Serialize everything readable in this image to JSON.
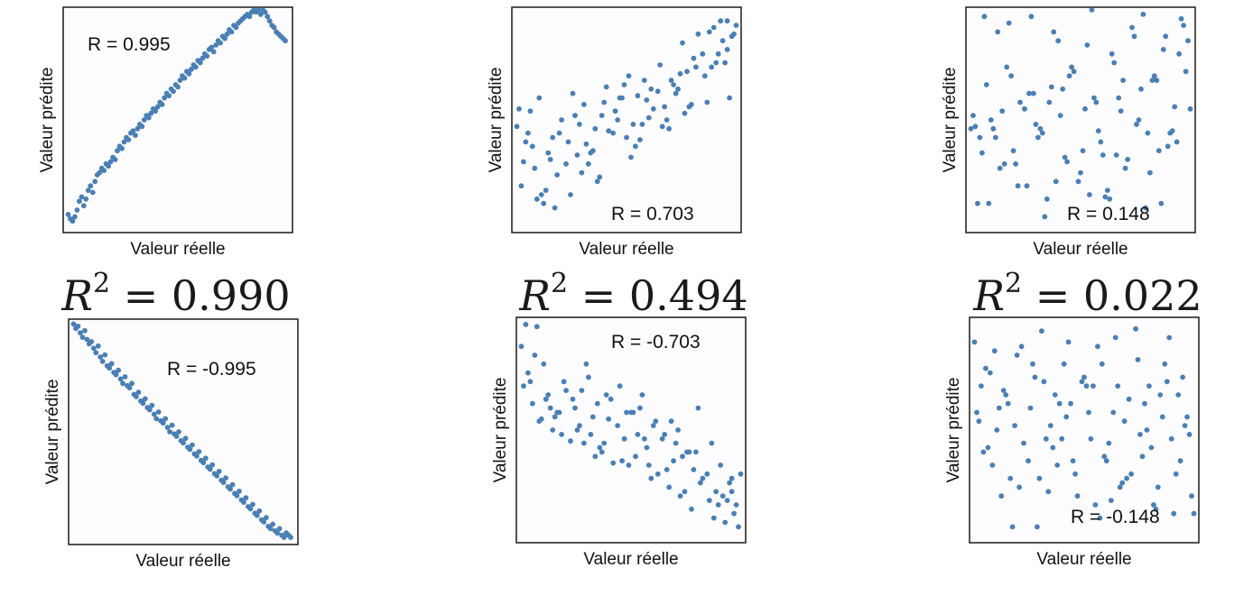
{
  "chart_data": [
    {
      "type": "scatter",
      "annotation": "R = 0.995",
      "xlabel": "Valeur réelle",
      "ylabel": "Valeur prédite",
      "point_color": "#4a7fb5",
      "x": [
        0.01,
        0.02,
        0.03,
        0.04,
        0.05,
        0.06,
        0.07,
        0.08,
        0.09,
        0.1,
        0.11,
        0.12,
        0.13,
        0.14,
        0.15,
        0.16,
        0.17,
        0.18,
        0.19,
        0.2,
        0.21,
        0.22,
        0.23,
        0.24,
        0.25,
        0.26,
        0.27,
        0.28,
        0.29,
        0.3,
        0.31,
        0.32,
        0.33,
        0.34,
        0.35,
        0.36,
        0.37,
        0.38,
        0.39,
        0.4,
        0.41,
        0.42,
        0.43,
        0.44,
        0.45,
        0.46,
        0.47,
        0.48,
        0.49,
        0.5,
        0.51,
        0.52,
        0.53,
        0.54,
        0.55,
        0.56,
        0.57,
        0.58,
        0.59,
        0.6,
        0.61,
        0.62,
        0.63,
        0.64,
        0.65,
        0.66,
        0.67,
        0.68,
        0.69,
        0.7,
        0.71,
        0.72,
        0.73,
        0.74,
        0.75,
        0.76,
        0.77,
        0.78,
        0.79,
        0.8,
        0.81,
        0.82,
        0.83,
        0.84,
        0.85,
        0.86,
        0.87,
        0.88,
        0.89,
        0.9,
        0.91,
        0.92,
        0.93,
        0.94,
        0.95,
        0.96,
        0.97,
        0.98
      ],
      "y": [
        0.07,
        0.05,
        0.04,
        0.06,
        0.09,
        0.13,
        0.15,
        0.11,
        0.14,
        0.18,
        0.2,
        0.17,
        0.22,
        0.25,
        0.26,
        0.28,
        0.27,
        0.3,
        0.29,
        0.31,
        0.33,
        0.32,
        0.36,
        0.38,
        0.37,
        0.4,
        0.42,
        0.41,
        0.44,
        0.45,
        0.43,
        0.46,
        0.48,
        0.47,
        0.5,
        0.52,
        0.51,
        0.53,
        0.55,
        0.54,
        0.56,
        0.58,
        0.57,
        0.6,
        0.62,
        0.61,
        0.64,
        0.63,
        0.66,
        0.65,
        0.68,
        0.7,
        0.69,
        0.72,
        0.71,
        0.73,
        0.75,
        0.74,
        0.77,
        0.76,
        0.78,
        0.8,
        0.79,
        0.82,
        0.83,
        0.81,
        0.84,
        0.86,
        0.85,
        0.88,
        0.87,
        0.89,
        0.91,
        0.9,
        0.93,
        0.92,
        0.94,
        0.95,
        0.96,
        0.97,
        0.98,
        0.97,
        0.99,
        1.0,
        0.99,
        1.0,
        0.98,
        1.0,
        0.99,
        0.97,
        0.95,
        0.93,
        0.92,
        0.9,
        0.89,
        0.88,
        0.87,
        0.86
      ]
    },
    {
      "type": "scatter",
      "annotation": "R = 0.703",
      "xlabel": "Valeur réelle",
      "ylabel": "Valeur prédite",
      "point_color": "#4a7fb5",
      "x": [
        0.01,
        0.03,
        0.05,
        0.08,
        0.1,
        0.13,
        0.15,
        0.18,
        0.2,
        0.23,
        0.25,
        0.27,
        0.3,
        0.32,
        0.35,
        0.37,
        0.4,
        0.42,
        0.45,
        0.47,
        0.5,
        0.52,
        0.55,
        0.57,
        0.6,
        0.62,
        0.65,
        0.67,
        0.7,
        0.72,
        0.75,
        0.77,
        0.8,
        0.82,
        0.85,
        0.87,
        0.9,
        0.92,
        0.95,
        0.97,
        0.99,
        0.02,
        0.06,
        0.11,
        0.16,
        0.21,
        0.26,
        0.31,
        0.36,
        0.41,
        0.46,
        0.51,
        0.56,
        0.61,
        0.66,
        0.71,
        0.76,
        0.81,
        0.86,
        0.91,
        0.96,
        0.04,
        0.09,
        0.14,
        0.19,
        0.24,
        0.29,
        0.34,
        0.39,
        0.44,
        0.49,
        0.54,
        0.59,
        0.64,
        0.69,
        0.74,
        0.79,
        0.84,
        0.89,
        0.94,
        0.98,
        0.07,
        0.17,
        0.28,
        0.38,
        0.48,
        0.58,
        0.68,
        0.78,
        0.88,
        0.95,
        0.12,
        0.33,
        0.53,
        0.73,
        0.93
      ],
      "y": [
        0.47,
        0.2,
        0.4,
        0.38,
        0.14,
        0.12,
        0.35,
        0.1,
        0.44,
        0.3,
        0.16,
        0.52,
        0.26,
        0.39,
        0.36,
        0.22,
        0.58,
        0.45,
        0.54,
        0.6,
        0.42,
        0.33,
        0.61,
        0.48,
        0.51,
        0.55,
        0.75,
        0.56,
        0.68,
        0.62,
        0.85,
        0.72,
        0.78,
        0.89,
        0.7,
        0.9,
        0.76,
        0.95,
        0.82,
        0.88,
        0.93,
        0.55,
        0.44,
        0.6,
        0.32,
        0.5,
        0.62,
        0.57,
        0.46,
        0.65,
        0.5,
        0.7,
        0.41,
        0.64,
        0.47,
        0.66,
        0.53,
        0.74,
        0.58,
        0.8,
        0.6,
        0.31,
        0.28,
        0.18,
        0.25,
        0.4,
        0.48,
        0.35,
        0.52,
        0.44,
        0.66,
        0.38,
        0.59,
        0.63,
        0.46,
        0.71,
        0.57,
        0.8,
        0.92,
        0.76,
        0.89,
        0.54,
        0.42,
        0.34,
        0.24,
        0.6,
        0.68,
        0.5,
        0.56,
        0.74,
        0.95,
        0.16,
        0.3,
        0.48,
        0.64,
        0.86
      ]
    },
    {
      "type": "scatter",
      "annotation": "R = 0.148",
      "xlabel": "Valeur réelle",
      "ylabel": "Valeur prédite",
      "point_color": "#4a7fb5",
      "x": [
        0.01,
        0.04,
        0.07,
        0.1,
        0.13,
        0.16,
        0.19,
        0.22,
        0.25,
        0.28,
        0.31,
        0.34,
        0.37,
        0.4,
        0.43,
        0.46,
        0.49,
        0.52,
        0.55,
        0.58,
        0.61,
        0.64,
        0.67,
        0.7,
        0.73,
        0.76,
        0.79,
        0.82,
        0.85,
        0.88,
        0.91,
        0.94,
        0.97,
        0.99,
        0.02,
        0.05,
        0.08,
        0.11,
        0.14,
        0.17,
        0.2,
        0.23,
        0.26,
        0.29,
        0.32,
        0.35,
        0.38,
        0.41,
        0.44,
        0.47,
        0.5,
        0.53,
        0.56,
        0.59,
        0.62,
        0.65,
        0.68,
        0.71,
        0.74,
        0.77,
        0.8,
        0.83,
        0.86,
        0.89,
        0.92,
        0.95,
        0.98,
        0.03,
        0.09,
        0.15,
        0.21,
        0.27,
        0.33,
        0.39,
        0.45,
        0.51,
        0.57,
        0.63,
        0.69,
        0.75,
        0.81,
        0.87,
        0.93,
        0.96,
        0.06,
        0.18,
        0.3,
        0.42,
        0.54,
        0.66,
        0.78,
        0.9,
        0.12,
        0.36,
        0.6,
        0.84
      ],
      "y": [
        0.46,
        0.12,
        0.97,
        0.5,
        0.9,
        0.3,
        0.7,
        0.2,
        0.55,
        0.97,
        0.42,
        0.06,
        0.65,
        0.86,
        0.33,
        0.74,
        0.22,
        0.55,
        1.0,
        0.45,
        0.15,
        0.8,
        0.6,
        0.28,
        0.92,
        0.5,
        0.1,
        0.68,
        0.36,
        0.88,
        0.45,
        0.8,
        0.72,
        0.55,
        0.52,
        0.42,
        0.66,
        0.46,
        0.28,
        0.74,
        0.36,
        0.58,
        0.2,
        0.62,
        0.46,
        0.14,
        0.9,
        0.52,
        0.31,
        0.72,
        0.26,
        0.84,
        0.6,
        0.4,
        0.18,
        0.76,
        0.54,
        0.32,
        0.88,
        0.64,
        0.44,
        0.7,
        0.12,
        0.38,
        0.56,
        0.96,
        0.86,
        0.47,
        0.12,
        0.54,
        0.3,
        0.62,
        0.44,
        0.22,
        0.7,
        0.36,
        0.58,
        0.14,
        0.68,
        0.48,
        0.26,
        0.82,
        0.4,
        0.93,
        0.35,
        0.94,
        0.48,
        0.64,
        0.16,
        0.34,
        0.98,
        0.44,
        0.42,
        0.58,
        0.34,
        0.68
      ]
    },
    {
      "type": "scatter",
      "annotation": "R = -0.995",
      "xlabel": "Valeur réelle",
      "ylabel": "Valeur prédite",
      "point_color": "#4a7fb5",
      "x": [
        0.01,
        0.02,
        0.03,
        0.04,
        0.05,
        0.06,
        0.07,
        0.08,
        0.09,
        0.1,
        0.11,
        0.12,
        0.13,
        0.14,
        0.15,
        0.16,
        0.17,
        0.18,
        0.19,
        0.2,
        0.21,
        0.22,
        0.23,
        0.24,
        0.25,
        0.26,
        0.27,
        0.28,
        0.29,
        0.3,
        0.31,
        0.32,
        0.33,
        0.34,
        0.35,
        0.36,
        0.37,
        0.38,
        0.39,
        0.4,
        0.41,
        0.42,
        0.43,
        0.44,
        0.45,
        0.46,
        0.47,
        0.48,
        0.49,
        0.5,
        0.51,
        0.52,
        0.53,
        0.54,
        0.55,
        0.56,
        0.57,
        0.58,
        0.59,
        0.6,
        0.61,
        0.62,
        0.63,
        0.64,
        0.65,
        0.66,
        0.67,
        0.68,
        0.69,
        0.7,
        0.71,
        0.72,
        0.73,
        0.74,
        0.75,
        0.76,
        0.77,
        0.78,
        0.79,
        0.8,
        0.81,
        0.82,
        0.83,
        0.84,
        0.85,
        0.86,
        0.87,
        0.88,
        0.89,
        0.9,
        0.91,
        0.92,
        0.93,
        0.94,
        0.95,
        0.96,
        0.97,
        0.98
      ],
      "y": [
        0.99,
        0.97,
        0.98,
        0.95,
        0.93,
        0.96,
        0.92,
        0.9,
        0.91,
        0.88,
        0.86,
        0.89,
        0.84,
        0.82,
        0.85,
        0.8,
        0.79,
        0.81,
        0.77,
        0.76,
        0.78,
        0.74,
        0.72,
        0.75,
        0.71,
        0.7,
        0.72,
        0.67,
        0.66,
        0.68,
        0.64,
        0.63,
        0.65,
        0.61,
        0.6,
        0.62,
        0.58,
        0.56,
        0.59,
        0.55,
        0.54,
        0.56,
        0.52,
        0.5,
        0.53,
        0.49,
        0.48,
        0.5,
        0.46,
        0.45,
        0.47,
        0.43,
        0.42,
        0.44,
        0.4,
        0.39,
        0.41,
        0.37,
        0.36,
        0.38,
        0.34,
        0.33,
        0.35,
        0.31,
        0.3,
        0.32,
        0.28,
        0.27,
        0.29,
        0.25,
        0.24,
        0.26,
        0.22,
        0.21,
        0.23,
        0.19,
        0.18,
        0.2,
        0.16,
        0.15,
        0.17,
        0.13,
        0.12,
        0.14,
        0.1,
        0.09,
        0.11,
        0.07,
        0.06,
        0.08,
        0.05,
        0.04,
        0.06,
        0.03,
        0.02,
        0.04,
        0.03,
        0.02
      ]
    },
    {
      "type": "scatter",
      "annotation": "R = -0.703",
      "xlabel": "Valeur réelle",
      "ylabel": "Valeur prédite",
      "point_color": "#4a7fb5",
      "x": [
        0.01,
        0.03,
        0.05,
        0.08,
        0.1,
        0.13,
        0.15,
        0.18,
        0.2,
        0.23,
        0.25,
        0.27,
        0.3,
        0.32,
        0.35,
        0.37,
        0.4,
        0.42,
        0.45,
        0.47,
        0.5,
        0.52,
        0.55,
        0.57,
        0.6,
        0.62,
        0.65,
        0.67,
        0.7,
        0.72,
        0.75,
        0.77,
        0.8,
        0.82,
        0.85,
        0.87,
        0.9,
        0.92,
        0.95,
        0.97,
        0.99,
        0.02,
        0.06,
        0.11,
        0.16,
        0.21,
        0.26,
        0.31,
        0.36,
        0.41,
        0.46,
        0.51,
        0.56,
        0.61,
        0.66,
        0.71,
        0.76,
        0.81,
        0.86,
        0.91,
        0.96,
        0.04,
        0.09,
        0.14,
        0.19,
        0.24,
        0.29,
        0.34,
        0.39,
        0.44,
        0.49,
        0.54,
        0.59,
        0.64,
        0.69,
        0.74,
        0.79,
        0.84,
        0.89,
        0.94,
        0.98,
        0.07,
        0.17,
        0.28,
        0.38,
        0.48,
        0.58,
        0.68,
        0.78,
        0.88,
        0.95,
        0.12,
        0.33,
        0.53,
        0.73,
        0.93
      ],
      "y": [
        0.88,
        0.98,
        0.72,
        0.97,
        0.55,
        0.66,
        0.5,
        0.58,
        0.72,
        0.45,
        0.6,
        0.52,
        0.8,
        0.48,
        0.62,
        0.4,
        0.55,
        0.35,
        0.7,
        0.46,
        0.58,
        0.38,
        0.66,
        0.42,
        0.52,
        0.3,
        0.48,
        0.24,
        0.44,
        0.2,
        0.4,
        0.14,
        0.6,
        0.28,
        0.18,
        0.1,
        0.34,
        0.08,
        0.22,
        0.16,
        0.3,
        0.7,
        0.62,
        0.8,
        0.56,
        0.68,
        0.5,
        0.74,
        0.42,
        0.64,
        0.36,
        0.58,
        0.46,
        0.54,
        0.32,
        0.5,
        0.4,
        0.26,
        0.44,
        0.2,
        0.12,
        0.76,
        0.54,
        0.6,
        0.48,
        0.64,
        0.44,
        0.38,
        0.66,
        0.52,
        0.34,
        0.6,
        0.28,
        0.46,
        0.36,
        0.22,
        0.4,
        0.3,
        0.16,
        0.26,
        0.06,
        0.84,
        0.58,
        0.68,
        0.44,
        0.58,
        0.34,
        0.54,
        0.32,
        0.22,
        0.28,
        0.64,
        0.56,
        0.48,
        0.38,
        0.18
      ]
    },
    {
      "type": "scatter",
      "annotation": "R = -0.148",
      "xlabel": "Valeur réelle",
      "ylabel": "Valeur prédite",
      "point_color": "#4a7fb5",
      "x": [
        0.01,
        0.04,
        0.07,
        0.1,
        0.13,
        0.16,
        0.19,
        0.22,
        0.25,
        0.28,
        0.31,
        0.34,
        0.37,
        0.4,
        0.43,
        0.46,
        0.49,
        0.52,
        0.55,
        0.58,
        0.61,
        0.64,
        0.67,
        0.7,
        0.73,
        0.76,
        0.79,
        0.82,
        0.85,
        0.88,
        0.91,
        0.94,
        0.97,
        0.99,
        0.02,
        0.05,
        0.08,
        0.11,
        0.14,
        0.17,
        0.2,
        0.23,
        0.26,
        0.29,
        0.32,
        0.35,
        0.38,
        0.41,
        0.44,
        0.47,
        0.5,
        0.53,
        0.56,
        0.59,
        0.62,
        0.65,
        0.68,
        0.71,
        0.74,
        0.77,
        0.8,
        0.83,
        0.86,
        0.89,
        0.92,
        0.95,
        0.98,
        0.03,
        0.09,
        0.15,
        0.21,
        0.27,
        0.33,
        0.39,
        0.45,
        0.51,
        0.57,
        0.63,
        0.69,
        0.75,
        0.81,
        0.87,
        0.93,
        0.96,
        0.06,
        0.18,
        0.3,
        0.42,
        0.54,
        0.66,
        0.78,
        0.9,
        0.12,
        0.36,
        0.6,
        0.84
      ],
      "y": [
        0.9,
        0.7,
        0.42,
        0.86,
        0.2,
        0.62,
        0.52,
        0.88,
        0.36,
        0.74,
        0.95,
        0.22,
        0.66,
        0.46,
        0.9,
        0.3,
        0.72,
        0.58,
        0.16,
        0.8,
        0.44,
        0.92,
        0.26,
        0.64,
        0.96,
        0.38,
        0.7,
        0.14,
        0.56,
        0.92,
        0.3,
        0.74,
        0.48,
        0.12,
        0.58,
        0.4,
        0.76,
        0.5,
        0.68,
        0.28,
        0.84,
        0.44,
        0.6,
        0.06,
        0.72,
        0.52,
        0.34,
        0.8,
        0.62,
        0.2,
        0.74,
        0.46,
        0.88,
        0.38,
        0.18,
        0.7,
        0.54,
        0.3,
        0.82,
        0.62,
        0.42,
        0.24,
        0.8,
        0.46,
        0.66,
        0.52,
        0.2,
        0.54,
        0.34,
        0.66,
        0.24,
        0.8,
        0.46,
        0.62,
        0.36,
        0.7,
        0.1,
        0.58,
        0.28,
        0.48,
        0.16,
        0.72,
        0.36,
        0.56,
        0.78,
        0.06,
        0.28,
        0.56,
        0.7,
        0.24,
        0.5,
        0.12,
        0.6,
        0.42,
        0.36,
        0.66
      ]
    }
  ],
  "r2_labels": [
    {
      "var": "R",
      "exp": "2",
      "rest": " = 0.990"
    },
    {
      "var": "R",
      "exp": "2",
      "rest": " = 0.494"
    },
    {
      "var": "R",
      "exp": "2",
      "rest": " = 0.022"
    }
  ]
}
